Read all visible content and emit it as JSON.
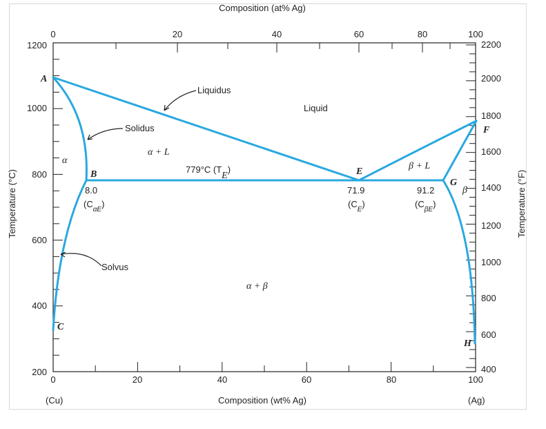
{
  "diagram": {
    "top_axis_title": "Composition (at% Ag)",
    "bottom_axis_title": "Composition (wt% Ag)",
    "left_axis_title": "Temperature (°C)",
    "right_axis_title": "Temperature (°F)",
    "bottom_ticks": [
      "0",
      "20",
      "40",
      "60",
      "80",
      "100"
    ],
    "top_ticks": [
      "0",
      "20",
      "40",
      "60",
      "80",
      "100"
    ],
    "left_ticks": [
      "200",
      "400",
      "600",
      "800",
      "1000",
      "1200"
    ],
    "right_ticks": [
      "400",
      "600",
      "800",
      "1000",
      "1200",
      "1400",
      "1600",
      "1800",
      "2000",
      "2200"
    ],
    "end_left": "(Cu)",
    "end_right": "(Ag)",
    "labels": {
      "liquidus": "Liquidus",
      "solidus": "Solidus",
      "solvus": "Solvus",
      "liquid": "Liquid",
      "alpha": "α",
      "beta": "β",
      "alpha_plus_l": "α + L",
      "beta_plus_l": "β + L",
      "alpha_plus_beta": "α + β",
      "eutectic_temp": "779°C (T",
      "eutectic_temp_sub": "E",
      "eutectic_temp_close": ")",
      "b_value": "8.0",
      "b_sym": "(C",
      "b_sub": "αE",
      "e_value": "71.9",
      "e_sym": "(C",
      "e_sub": "E",
      "g_value": "91.2",
      "g_sym": "(C",
      "g_sub": "βE",
      "close_paren": ")"
    },
    "points": {
      "A": "A",
      "B": "B",
      "C": "C",
      "E": "E",
      "F": "F",
      "G": "G",
      "H": "H"
    },
    "line_color": "#29a8e0"
  }
}
